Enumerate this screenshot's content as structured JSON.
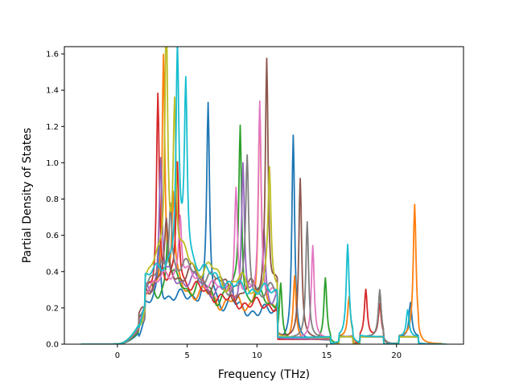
{
  "chart_data": {
    "type": "line",
    "title": "",
    "xlabel": "Frequency (THz)",
    "ylabel": "Partial Density of States",
    "xlim": [
      -3.8,
      24.8
    ],
    "ylim": [
      0,
      1.64
    ],
    "xticks": [
      0,
      5,
      10,
      15,
      20
    ],
    "yticks": [
      0.0,
      0.2,
      0.4,
      0.6,
      0.8,
      1.0,
      1.2,
      1.4,
      1.6
    ],
    "ytick_labels": [
      "0.0",
      "0.2",
      "0.4",
      "0.6",
      "0.8",
      "1.0",
      "1.2",
      "1.4",
      "1.6"
    ],
    "grid": false,
    "legend": "none",
    "x_range_of_data": [
      -2.6,
      23.6
    ],
    "series": [
      {
        "color": "#1f77b4",
        "peaks": [
          [
            3.0,
            0.45
          ],
          [
            6.5,
            1.24
          ],
          [
            8.2,
            0.3
          ],
          [
            12.6,
            1.28
          ],
          [
            21.0,
            0.34
          ]
        ]
      },
      {
        "color": "#ff7f0e",
        "peaks": [
          [
            3.3,
            1.48
          ],
          [
            4.0,
            0.66
          ],
          [
            10.2,
            1.2
          ],
          [
            12.7,
            0.5
          ],
          [
            16.6,
            0.37
          ],
          [
            21.3,
            0.88
          ]
        ]
      },
      {
        "color": "#2ca02c",
        "peaks": [
          [
            3.6,
            0.42
          ],
          [
            8.8,
            1.15
          ],
          [
            11.7,
            0.46
          ],
          [
            14.9,
            0.49
          ]
        ]
      },
      {
        "color": "#d62728",
        "peaks": [
          [
            2.9,
            1.25
          ],
          [
            4.3,
            0.84
          ],
          [
            17.8,
            0.41
          ],
          [
            18.8,
            0.33
          ]
        ]
      },
      {
        "color": "#9467bd",
        "peaks": [
          [
            3.1,
            0.85
          ],
          [
            9.0,
            0.9
          ],
          [
            10.5,
            0.55
          ]
        ]
      },
      {
        "color": "#8c564b",
        "peaks": [
          [
            3.5,
            0.4
          ],
          [
            10.7,
            1.5
          ],
          [
            13.1,
            1.03
          ],
          [
            18.8,
            0.4
          ]
        ]
      },
      {
        "color": "#e377c2",
        "peaks": [
          [
            4.5,
            0.5
          ],
          [
            8.5,
            0.73
          ],
          [
            10.2,
            1.23
          ],
          [
            14.0,
            0.66
          ]
        ]
      },
      {
        "color": "#7f7f7f",
        "peaks": [
          [
            3.8,
            0.55
          ],
          [
            9.3,
            0.86
          ],
          [
            13.6,
            0.79
          ],
          [
            18.8,
            0.41
          ]
        ]
      },
      {
        "color": "#bcbd22",
        "peaks": [
          [
            3.5,
            1.56
          ],
          [
            4.1,
            1.04
          ],
          [
            10.9,
            0.76
          ]
        ]
      },
      {
        "color": "#17becf",
        "peaks": [
          [
            4.3,
            1.32
          ],
          [
            4.9,
            1.15
          ],
          [
            16.5,
            0.66
          ],
          [
            20.8,
            0.3
          ]
        ]
      }
    ]
  }
}
